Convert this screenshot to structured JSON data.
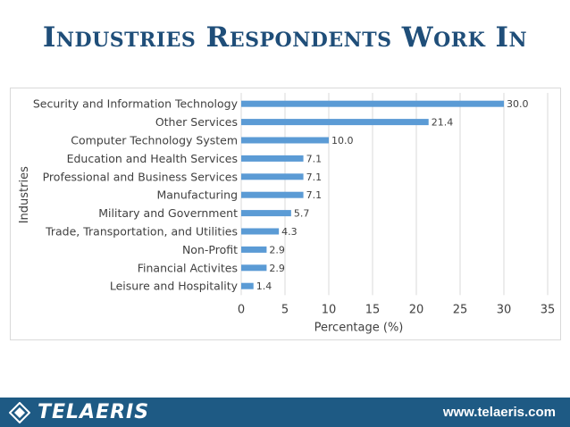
{
  "slide": {
    "title": "Industries Respondents Work In"
  },
  "chart_data": {
    "type": "bar",
    "orientation": "horizontal",
    "categories": [
      "Security and Information Technology",
      "Other Services",
      "Computer Technology System",
      "Education and Health Services",
      "Professional and Business Services",
      "Manufacturing",
      "Military and Government",
      "Trade, Transportation, and Utilities",
      "Non-Profit",
      "Financial Activites",
      "Leisure and Hospitality"
    ],
    "values": [
      30.0,
      21.4,
      10.0,
      7.1,
      7.1,
      7.1,
      5.7,
      4.3,
      2.9,
      2.9,
      1.4
    ],
    "value_labels": [
      "30.0",
      "21.4",
      "10.0",
      "7.1",
      "7.1",
      "7.1",
      "5.7",
      "4.3",
      "2.9",
      "2.9",
      "1.4"
    ],
    "xlabel": "Percentage (%)",
    "ylabel": "Industries",
    "xlim": [
      0,
      35
    ],
    "xticks": [
      0,
      5,
      10,
      15,
      20,
      25,
      30,
      35
    ],
    "grid": "vertical",
    "bar_color": "#5b9bd5",
    "gridline_color": "#d9d9d9",
    "text_color": "#404040"
  },
  "footer": {
    "brand": "TELAERIS",
    "url": "www.telaeris.com",
    "background": "#1e5a84"
  }
}
